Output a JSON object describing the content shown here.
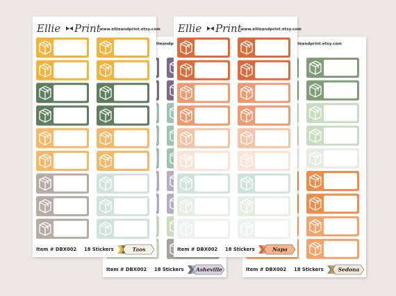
{
  "sheets": [
    {
      "logo_left": "Ellie",
      "logo_right": "Print",
      "url": "www.ellieandprint.etsy.com",
      "item": "Item # DBX002",
      "count": "18 Stickers",
      "name": "Taos"
    },
    {
      "url": "www.ellieandprint.etsy.com",
      "item": "Item # DBX002",
      "count": "18 Stickers",
      "name": "Asheville"
    },
    {
      "logo_left": "Ellie",
      "logo_right": "Print",
      "url": "www.ellieandprint.etsy.com",
      "item": "Item # DBX002",
      "count": "18 Stickers",
      "name": "Napa"
    },
    {
      "url": "www.ellieandprint.etsy.com",
      "item": "Item # DBX002",
      "count": "18 Stickers",
      "name": "Sedona"
    }
  ]
}
